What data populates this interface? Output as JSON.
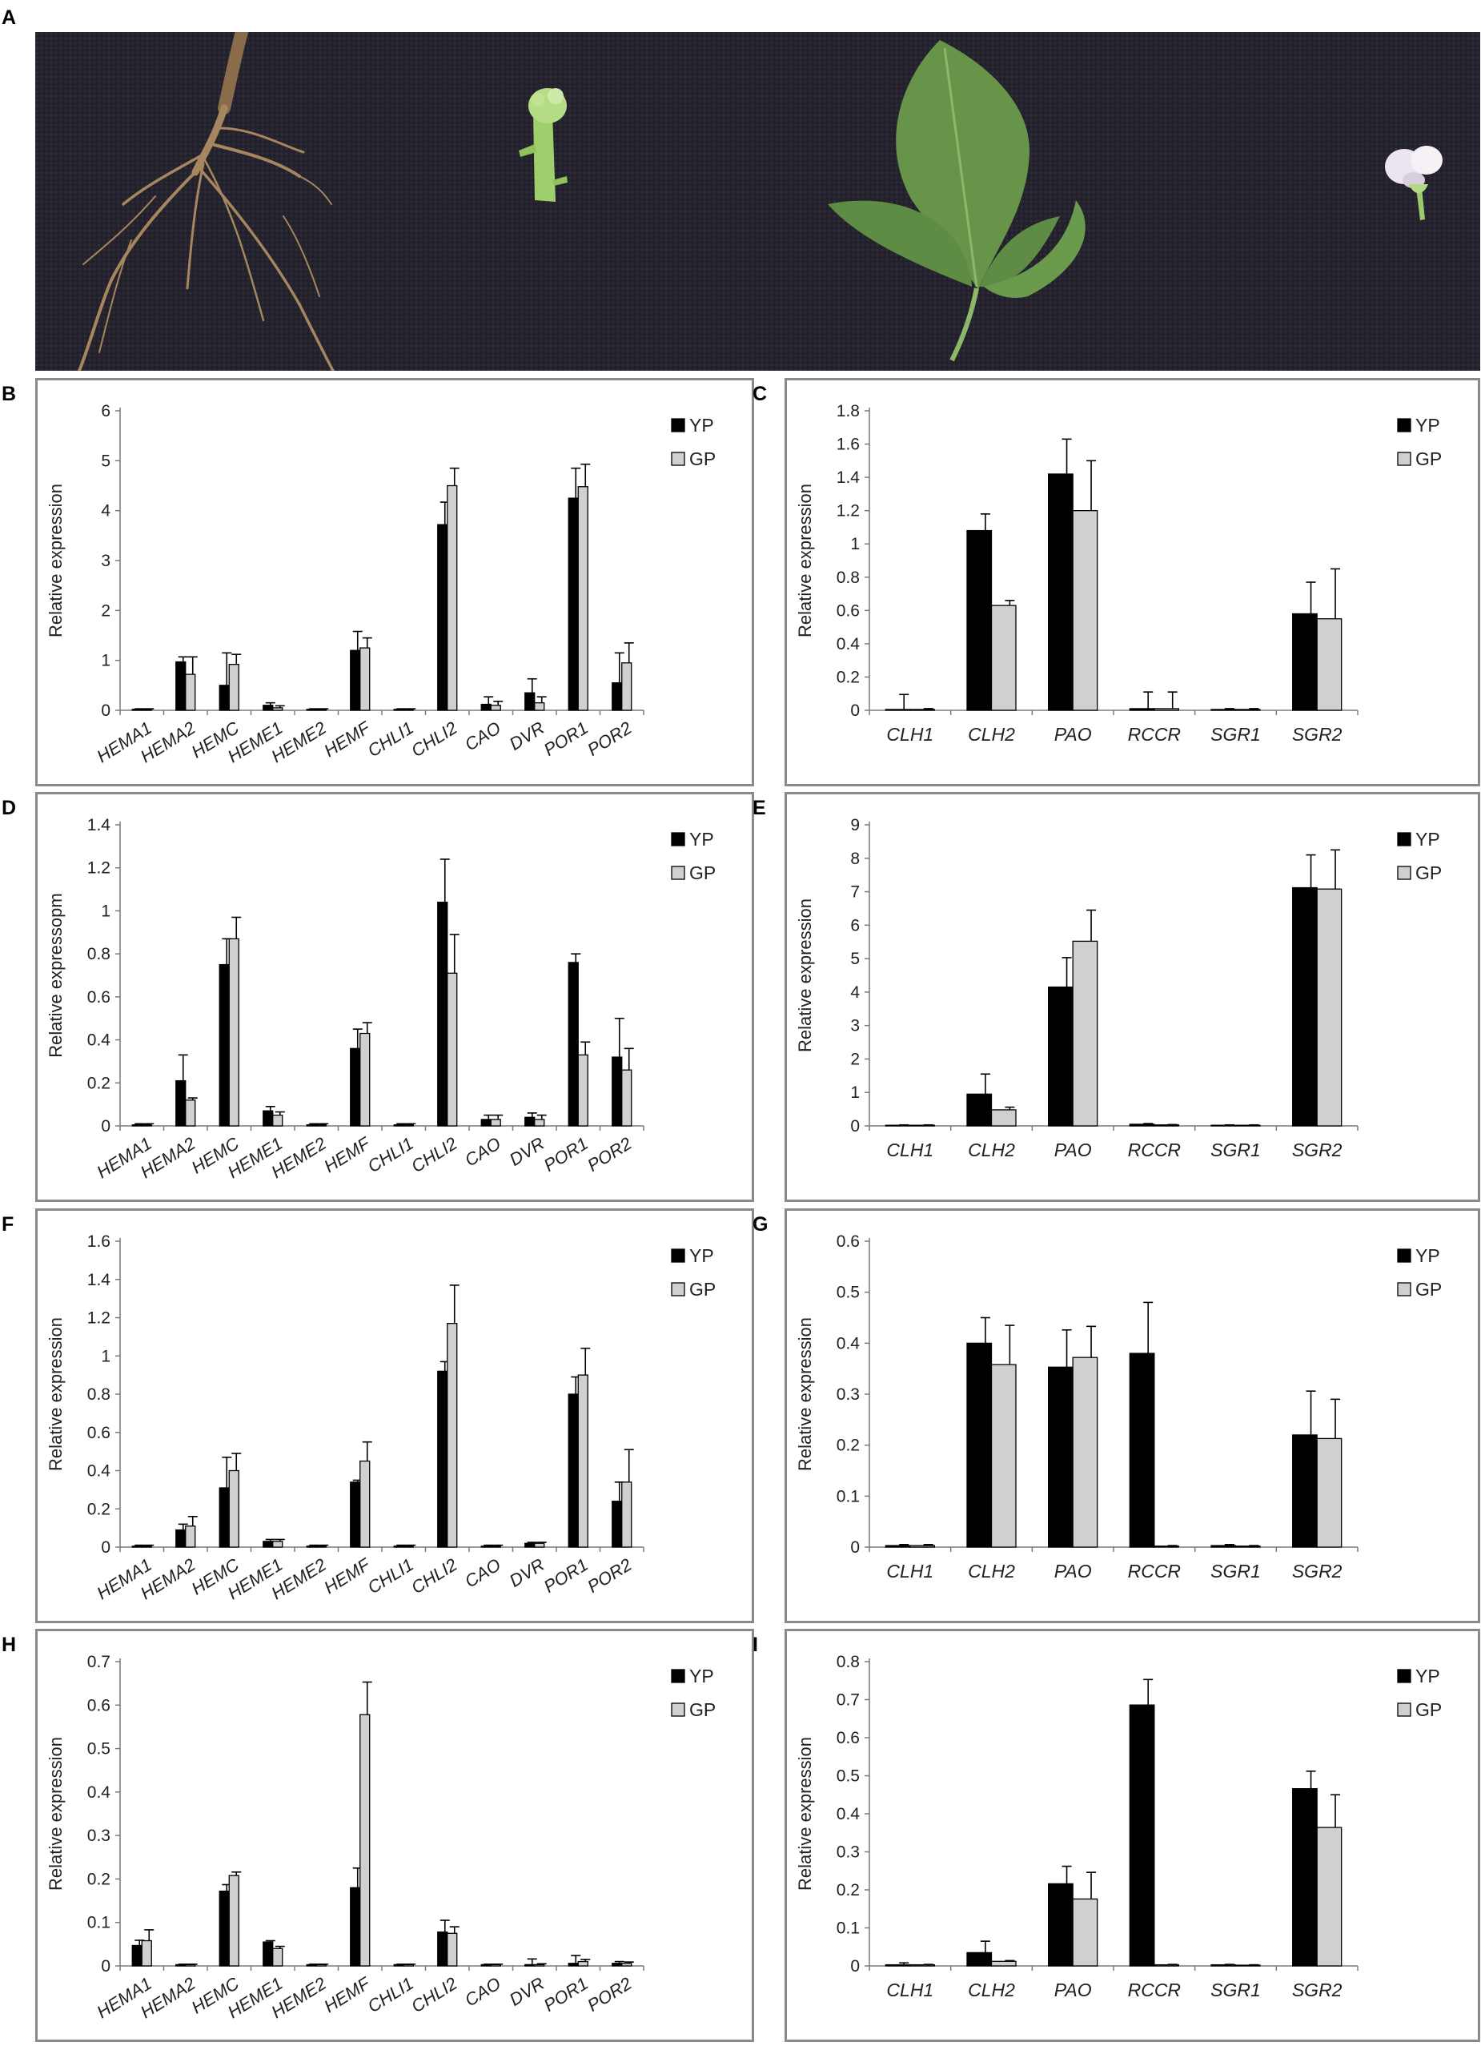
{
  "figure": {
    "photo_label": "A",
    "legend_labels": [
      "YP",
      "GP"
    ],
    "legend_colors": [
      "#000000",
      "#d0d0d0"
    ]
  },
  "chart_data": [
    {
      "panel": "B",
      "type": "bar",
      "categories": [
        "HEMA1",
        "HEMA2",
        "HEMC",
        "HEME1",
        "HEME2",
        "HEMF",
        "CHLI1",
        "CHLI2",
        "CAO",
        "DVR",
        "POR1",
        "POR2"
      ],
      "series": [
        {
          "name": "YP",
          "values": [
            0.02,
            0.97,
            0.5,
            0.1,
            0.02,
            1.2,
            0.02,
            3.72,
            0.12,
            0.35,
            4.25,
            0.55
          ],
          "errors": [
            0.01,
            0.1,
            0.65,
            0.05,
            0.01,
            0.38,
            0.01,
            0.45,
            0.15,
            0.28,
            0.6,
            0.6
          ]
        },
        {
          "name": "GP",
          "values": [
            0.02,
            0.72,
            0.92,
            0.05,
            0.02,
            1.25,
            0.02,
            4.5,
            0.1,
            0.15,
            4.48,
            0.95
          ],
          "errors": [
            0.01,
            0.35,
            0.2,
            0.04,
            0.01,
            0.2,
            0.01,
            0.35,
            0.08,
            0.12,
            0.45,
            0.4
          ]
        }
      ],
      "ylim": [
        0,
        6
      ],
      "yticks": [
        "0",
        "1",
        "2",
        "3",
        "4",
        "5",
        "6"
      ],
      "ylabel": "Relative expression",
      "xlabel": "",
      "legend": "top-right",
      "grid": false
    },
    {
      "panel": "C",
      "type": "bar",
      "categories": [
        "CLH1",
        "CLH2",
        "PAO",
        "RCCR",
        "SGR1",
        "SGR2"
      ],
      "series": [
        {
          "name": "YP",
          "values": [
            0.005,
            1.08,
            1.42,
            0.01,
            0.005,
            0.58
          ],
          "errors": [
            0.09,
            0.1,
            0.21,
            0.1,
            0.005,
            0.19
          ]
        },
        {
          "name": "GP",
          "values": [
            0.005,
            0.63,
            1.2,
            0.01,
            0.005,
            0.55
          ],
          "errors": [
            0.005,
            0.03,
            0.3,
            0.1,
            0.005,
            0.3
          ]
        }
      ],
      "ylim": [
        0,
        1.8
      ],
      "yticks": [
        "0",
        "0.2",
        "0.4",
        "0.6",
        "0.8",
        "1",
        "1.2",
        "1.4",
        "1.6",
        "1.8"
      ],
      "ylabel": "Relative expression",
      "xlabel": "",
      "legend": "top-right",
      "grid": false
    },
    {
      "panel": "D",
      "type": "bar",
      "categories": [
        "HEMA1",
        "HEMA2",
        "HEMC",
        "HEME1",
        "HEME2",
        "HEMF",
        "CHLI1",
        "CHLI2",
        "CAO",
        "DVR",
        "POR1",
        "POR2"
      ],
      "series": [
        {
          "name": "YP",
          "values": [
            0.005,
            0.21,
            0.75,
            0.07,
            0.005,
            0.36,
            0.005,
            1.04,
            0.03,
            0.04,
            0.76,
            0.32
          ],
          "errors": [
            0.005,
            0.12,
            0.12,
            0.02,
            0.005,
            0.09,
            0.005,
            0.2,
            0.02,
            0.02,
            0.04,
            0.18
          ]
        },
        {
          "name": "GP",
          "values": [
            0.005,
            0.12,
            0.87,
            0.05,
            0.005,
            0.43,
            0.005,
            0.71,
            0.03,
            0.03,
            0.33,
            0.26
          ],
          "errors": [
            0.005,
            0.01,
            0.1,
            0.015,
            0.005,
            0.05,
            0.005,
            0.18,
            0.02,
            0.02,
            0.06,
            0.1
          ]
        }
      ],
      "ylim": [
        0,
        1.4
      ],
      "yticks": [
        "0",
        "0.2",
        "0.4",
        "0.6",
        "0.8",
        "1",
        "1.2",
        "1.4"
      ],
      "ylabel": "Relative expressopm",
      "xlabel": "",
      "legend": "top-right",
      "grid": false
    },
    {
      "panel": "E",
      "type": "bar",
      "categories": [
        "CLH1",
        "CLH2",
        "PAO",
        "RCCR",
        "SGR1",
        "SGR2"
      ],
      "series": [
        {
          "name": "YP",
          "values": [
            0.02,
            0.95,
            4.15,
            0.05,
            0.02,
            7.12
          ],
          "errors": [
            0.01,
            0.6,
            0.88,
            0.02,
            0.01,
            0.98
          ]
        },
        {
          "name": "GP",
          "values": [
            0.02,
            0.48,
            5.52,
            0.03,
            0.02,
            7.08
          ],
          "errors": [
            0.01,
            0.08,
            0.93,
            0.01,
            0.01,
            1.17
          ]
        }
      ],
      "ylim": [
        0,
        9
      ],
      "yticks": [
        "0",
        "1",
        "2",
        "3",
        "4",
        "5",
        "6",
        "7",
        "8",
        "9"
      ],
      "ylabel": "Relative expression",
      "xlabel": "",
      "legend": "top-right",
      "grid": false
    },
    {
      "panel": "F",
      "type": "bar",
      "categories": [
        "HEMA1",
        "HEMA2",
        "HEMC",
        "HEME1",
        "HEME2",
        "HEMF",
        "CHLI1",
        "CHLI2",
        "CAO",
        "DVR",
        "POR1",
        "POR2"
      ],
      "series": [
        {
          "name": "YP",
          "values": [
            0.005,
            0.09,
            0.31,
            0.03,
            0.005,
            0.34,
            0.005,
            0.92,
            0.005,
            0.02,
            0.8,
            0.24
          ],
          "errors": [
            0.005,
            0.03,
            0.16,
            0.01,
            0.005,
            0.01,
            0.005,
            0.05,
            0.005,
            0.005,
            0.09,
            0.1
          ]
        },
        {
          "name": "GP",
          "values": [
            0.005,
            0.11,
            0.4,
            0.03,
            0.005,
            0.45,
            0.005,
            1.17,
            0.005,
            0.02,
            0.9,
            0.34
          ],
          "errors": [
            0.005,
            0.05,
            0.09,
            0.01,
            0.005,
            0.1,
            0.005,
            0.2,
            0.005,
            0.005,
            0.14,
            0.17
          ]
        }
      ],
      "ylim": [
        0,
        1.6
      ],
      "yticks": [
        "0",
        "0.2",
        "0.4",
        "0.6",
        "0.8",
        "1",
        "1.2",
        "1.4",
        "1.6"
      ],
      "ylabel": "Relative expression",
      "xlabel": "",
      "legend": "top-right",
      "grid": false
    },
    {
      "panel": "G",
      "type": "bar",
      "categories": [
        "CLH1",
        "CLH2",
        "PAO",
        "RCCR",
        "SGR1",
        "SGR2"
      ],
      "series": [
        {
          "name": "YP",
          "values": [
            0.003,
            0.4,
            0.353,
            0.38,
            0.003,
            0.22
          ],
          "errors": [
            0.002,
            0.05,
            0.073,
            0.1,
            0.002,
            0.086
          ]
        },
        {
          "name": "GP",
          "values": [
            0.003,
            0.358,
            0.372,
            0.002,
            0.002,
            0.213
          ],
          "errors": [
            0.002,
            0.077,
            0.061,
            0.001,
            0.001,
            0.077
          ]
        }
      ],
      "ylim": [
        0,
        0.6
      ],
      "yticks": [
        "0",
        "0.1",
        "0.2",
        "0.3",
        "0.4",
        "0.5",
        "0.6"
      ],
      "ylabel": "Relative expression",
      "xlabel": "",
      "legend": "top-right",
      "grid": false
    },
    {
      "panel": "H",
      "type": "bar",
      "categories": [
        "HEMA1",
        "HEMA2",
        "HEMC",
        "HEME1",
        "HEME2",
        "HEMF",
        "CHLI1",
        "CHLI2",
        "CAO",
        "DVR",
        "POR1",
        "POR2"
      ],
      "series": [
        {
          "name": "YP",
          "values": [
            0.047,
            0.003,
            0.172,
            0.055,
            0.003,
            0.18,
            0.003,
            0.078,
            0.003,
            0.003,
            0.006,
            0.006
          ],
          "errors": [
            0.012,
            0.001,
            0.015,
            0.003,
            0.001,
            0.045,
            0.001,
            0.027,
            0.001,
            0.013,
            0.018,
            0.004
          ]
        },
        {
          "name": "GP",
          "values": [
            0.058,
            0.003,
            0.208,
            0.04,
            0.003,
            0.578,
            0.003,
            0.075,
            0.003,
            0.003,
            0.01,
            0.006
          ],
          "errors": [
            0.025,
            0.001,
            0.008,
            0.005,
            0.001,
            0.075,
            0.001,
            0.015,
            0.001,
            0.002,
            0.005,
            0.003
          ]
        }
      ],
      "ylim": [
        0,
        0.7
      ],
      "yticks": [
        "0",
        "0.1",
        "0.2",
        "0.3",
        "0.4",
        "0.5",
        "0.6",
        "0.7"
      ],
      "ylabel": "Relative expression",
      "xlabel": "",
      "legend": "top-right",
      "grid": false
    },
    {
      "panel": "I",
      "type": "bar",
      "categories": [
        "CLH1",
        "CLH2",
        "PAO",
        "RCCR",
        "SGR1",
        "SGR2"
      ],
      "series": [
        {
          "name": "YP",
          "values": [
            0.003,
            0.035,
            0.216,
            0.686,
            0.003,
            0.466
          ],
          "errors": [
            0.005,
            0.03,
            0.046,
            0.067,
            0.001,
            0.046
          ]
        },
        {
          "name": "GP",
          "values": [
            0.003,
            0.012,
            0.176,
            0.003,
            0.002,
            0.364
          ],
          "errors": [
            0.001,
            0.002,
            0.07,
            0.001,
            0.001,
            0.086
          ]
        }
      ],
      "ylim": [
        0,
        0.8
      ],
      "yticks": [
        "0",
        "0.1",
        "0.2",
        "0.3",
        "0.4",
        "0.5",
        "0.6",
        "0.7",
        "0.8"
      ],
      "ylabel": "Relative expression",
      "xlabel": "",
      "legend": "top-right",
      "grid": false
    }
  ]
}
